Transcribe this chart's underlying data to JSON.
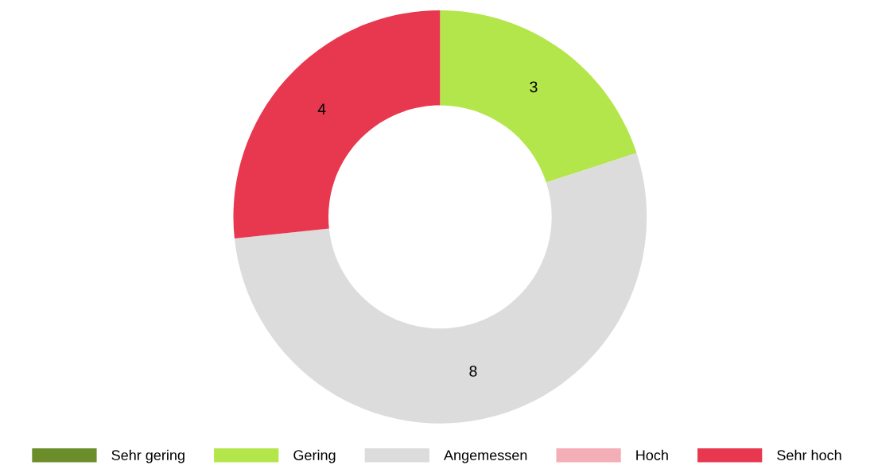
{
  "chart_data": {
    "type": "donut",
    "categories": [
      "Sehr gering",
      "Gering",
      "Angemessen",
      "Hoch",
      "Sehr hoch"
    ],
    "values": [
      0,
      3,
      8,
      0,
      4
    ],
    "colors": [
      "#6b8e2a",
      "#b3e64a",
      "#dcdcdc",
      "#f4aeb6",
      "#e8384f"
    ],
    "value_labels": [
      null,
      "3",
      "8",
      null,
      "4"
    ],
    "legend": "bottom"
  }
}
